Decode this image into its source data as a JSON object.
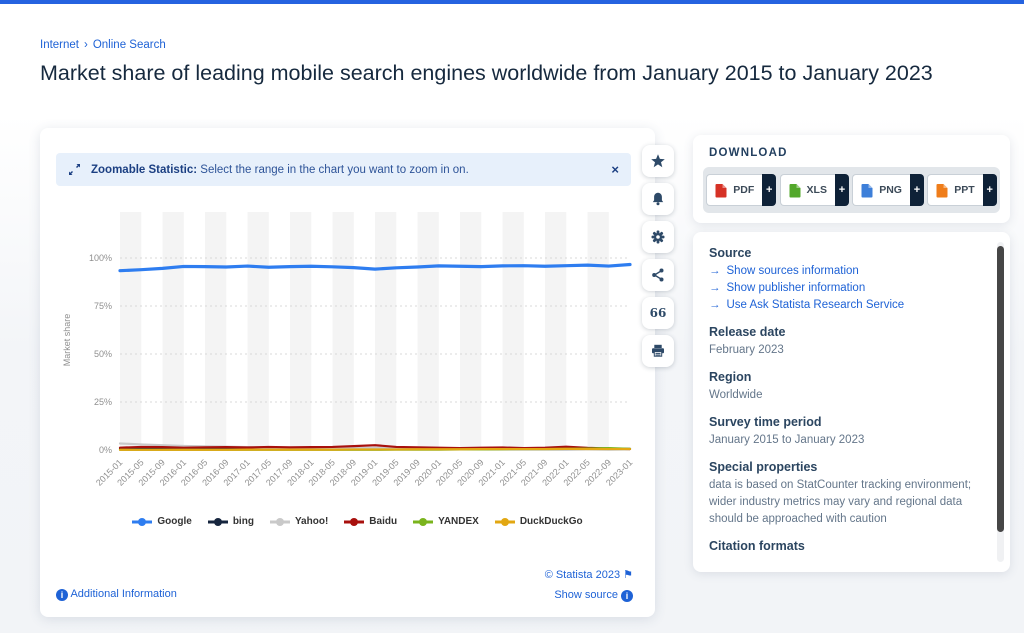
{
  "page": {
    "breadcrumb": {
      "items": [
        "Internet",
        "Online Search"
      ],
      "separator": "›"
    },
    "title": "Market share of leading mobile search engines worldwide from January 2015 to January 2023"
  },
  "banner": {
    "icon": "zoom-diagonal-arrows-icon",
    "bold_text": "Zoomable Statistic:",
    "text": "Select the range in the chart you want to zoom in on.",
    "close_label": "×"
  },
  "toolbar": {
    "icons": [
      "star-icon",
      "bell-icon",
      "gear-icon",
      "share-icon",
      "quote-icon",
      "print-icon"
    ]
  },
  "chart_data": {
    "type": "line",
    "title": "",
    "ylabel": "Market share",
    "ylim": [
      0,
      100
    ],
    "y_ticks": [
      0,
      25,
      50,
      75,
      100
    ],
    "y_tick_labels": [
      "0%",
      "25%",
      "50%",
      "75%",
      "100%"
    ],
    "grid": true,
    "legend_position": "bottom",
    "x": [
      "2015-01",
      "2015-05",
      "2015-09",
      "2016-01",
      "2016-05",
      "2016-09",
      "2017-01",
      "2017-05",
      "2017-09",
      "2018-01",
      "2018-05",
      "2018-09",
      "2019-01",
      "2019-05",
      "2019-09",
      "2020-01",
      "2020-05",
      "2020-09",
      "2021-01",
      "2021-05",
      "2021-09",
      "2022-01",
      "2022-05",
      "2022-09",
      "2023-01"
    ],
    "series": [
      {
        "name": "Google",
        "color": "#2e7df0",
        "values": [
          93.4,
          93.9,
          94.6,
          95.6,
          95.5,
          95.3,
          95.8,
          95.2,
          95.5,
          95.7,
          95.4,
          95.0,
          94.2,
          94.9,
          95.3,
          95.9,
          95.7,
          95.5,
          95.9,
          96.0,
          95.7,
          96.0,
          96.3,
          95.8,
          96.6
        ]
      },
      {
        "name": "bing",
        "color": "#16253e",
        "values": [
          0.8,
          0.7,
          0.7,
          0.6,
          0.6,
          0.6,
          0.7,
          0.7,
          0.6,
          0.6,
          0.5,
          0.5,
          0.6,
          0.5,
          0.5,
          0.5,
          0.5,
          0.4,
          0.5,
          0.5,
          0.5,
          0.5,
          0.6,
          0.5,
          0.6
        ]
      },
      {
        "name": "Yahoo!",
        "color": "#c9c9c9",
        "values": [
          3.4,
          2.9,
          2.5,
          2.1,
          1.9,
          1.7,
          1.5,
          1.3,
          1.2,
          1.1,
          1.0,
          1.0,
          1.2,
          0.9,
          0.8,
          0.7,
          0.7,
          0.6,
          0.6,
          0.6,
          0.6,
          0.7,
          0.6,
          0.6,
          0.6
        ]
      },
      {
        "name": "Baidu",
        "color": "#a8100d",
        "values": [
          1.2,
          1.6,
          1.5,
          1.2,
          1.4,
          1.5,
          1.3,
          1.6,
          1.4,
          1.5,
          1.6,
          2.0,
          2.5,
          1.6,
          1.4,
          1.2,
          1.0,
          1.2,
          1.3,
          1.0,
          1.2,
          1.7,
          1.1,
          0.8,
          0.5
        ]
      },
      {
        "name": "YANDEX",
        "color": "#7ab41d",
        "values": [
          0.1,
          0.1,
          0.1,
          0.1,
          0.1,
          0.1,
          0.1,
          0.1,
          0.1,
          0.1,
          0.1,
          0.1,
          0.1,
          0.2,
          0.2,
          0.2,
          0.3,
          0.3,
          0.4,
          0.5,
          0.5,
          0.6,
          0.7,
          1.0,
          0.6
        ]
      },
      {
        "name": "DuckDuckGo",
        "color": "#e2a712",
        "values": [
          0.1,
          0.1,
          0.1,
          0.1,
          0.1,
          0.1,
          0.2,
          0.2,
          0.2,
          0.2,
          0.2,
          0.3,
          0.3,
          0.3,
          0.4,
          0.4,
          0.4,
          0.5,
          0.5,
          0.5,
          0.5,
          0.6,
          0.5,
          0.5,
          0.5
        ]
      }
    ]
  },
  "chart_footer": {
    "copyright": "© Statista 2023",
    "flag_icon": "⚑",
    "show_source": "Show source",
    "additional_info": "Additional Information",
    "info_icon": "i"
  },
  "download": {
    "heading": "DOWNLOAD",
    "plus_label": "+",
    "buttons": [
      {
        "label": "PDF",
        "icon": "pdf-file-icon",
        "color": "#d63226"
      },
      {
        "label": "XLS",
        "icon": "xls-file-icon",
        "color": "#53a82b"
      },
      {
        "label": "PNG",
        "icon": "png-image-icon",
        "color": "#3d7fd9"
      },
      {
        "label": "PPT",
        "icon": "ppt-file-icon",
        "color": "#ef7d1a"
      }
    ]
  },
  "info_panel": {
    "sections": [
      {
        "heading": "Source",
        "links": [
          "Show sources information",
          "Show publisher information",
          "Use Ask Statista Research Service"
        ]
      },
      {
        "heading": "Release date",
        "text": "February 2023"
      },
      {
        "heading": "Region",
        "text": "Worldwide"
      },
      {
        "heading": "Survey time period",
        "text": "January 2015 to January 2023"
      },
      {
        "heading": "Special properties",
        "text": "data is based on StatCounter tracking environment; wider industry metrics may vary and regional data should be approached with caution"
      },
      {
        "heading": "Citation formats"
      }
    ],
    "link_arrow": "→"
  }
}
